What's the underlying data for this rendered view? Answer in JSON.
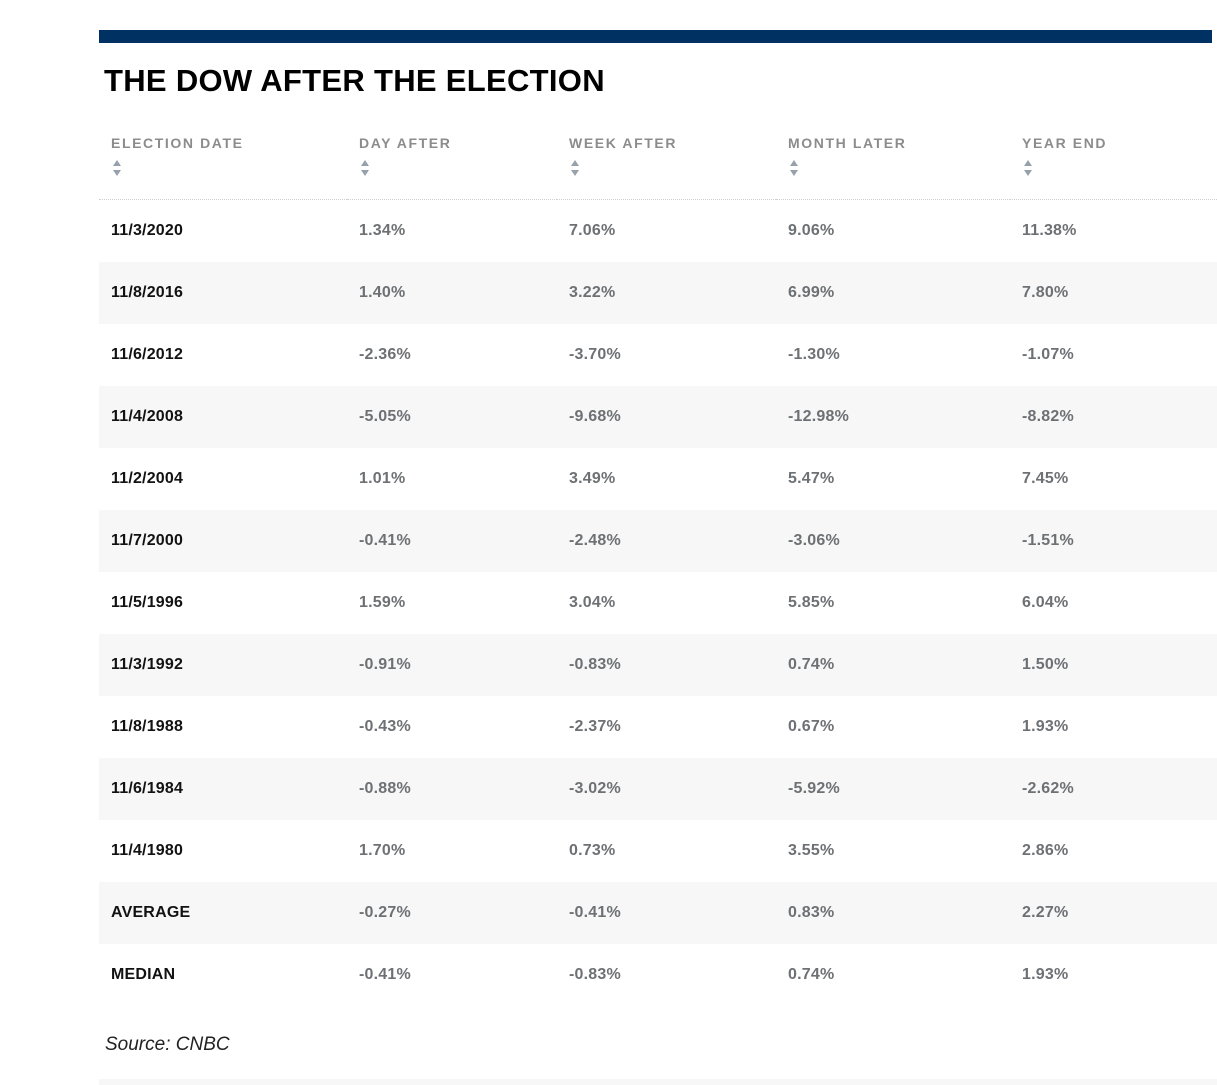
{
  "title": "THE DOW AFTER THE ELECTION",
  "source": "Source: CNBC",
  "colors": {
    "brand_bar": "#003163",
    "row_stripe": "#f7f7f7",
    "header_text": "#8c8c8c",
    "value_text": "#6e7174",
    "label_text": "#121212"
  },
  "table": {
    "columns": [
      {
        "id": "election-date",
        "label": "ELECTION DATE"
      },
      {
        "id": "day-after",
        "label": "DAY AFTER"
      },
      {
        "id": "week-after",
        "label": "WEEK AFTER"
      },
      {
        "id": "month-later",
        "label": "MONTH LATER"
      },
      {
        "id": "year-end",
        "label": "YEAR END"
      }
    ],
    "rows": [
      {
        "label": "11/3/2020",
        "values": [
          "1.34%",
          "7.06%",
          "9.06%",
          "11.38%"
        ]
      },
      {
        "label": "11/8/2016",
        "values": [
          "1.40%",
          "3.22%",
          "6.99%",
          "7.80%"
        ]
      },
      {
        "label": "11/6/2012",
        "values": [
          "-2.36%",
          "-3.70%",
          "-1.30%",
          "-1.07%"
        ]
      },
      {
        "label": "11/4/2008",
        "values": [
          "-5.05%",
          "-9.68%",
          "-12.98%",
          "-8.82%"
        ]
      },
      {
        "label": "11/2/2004",
        "values": [
          "1.01%",
          "3.49%",
          "5.47%",
          "7.45%"
        ]
      },
      {
        "label": "11/7/2000",
        "values": [
          "-0.41%",
          "-2.48%",
          "-3.06%",
          "-1.51%"
        ]
      },
      {
        "label": "11/5/1996",
        "values": [
          "1.59%",
          "3.04%",
          "5.85%",
          "6.04%"
        ]
      },
      {
        "label": "11/3/1992",
        "values": [
          "-0.91%",
          "-0.83%",
          "0.74%",
          "1.50%"
        ]
      },
      {
        "label": "11/8/1988",
        "values": [
          "-0.43%",
          "-2.37%",
          "0.67%",
          "1.93%"
        ]
      },
      {
        "label": "11/6/1984",
        "values": [
          "-0.88%",
          "-3.02%",
          "-5.92%",
          "-2.62%"
        ]
      },
      {
        "label": "11/4/1980",
        "values": [
          "1.70%",
          "0.73%",
          "3.55%",
          "2.86%"
        ]
      },
      {
        "label": "AVERAGE",
        "values": [
          "-0.27%",
          "-0.41%",
          "0.83%",
          "2.27%"
        ]
      },
      {
        "label": "MEDIAN",
        "values": [
          "-0.41%",
          "-0.83%",
          "0.74%",
          "1.93%"
        ]
      }
    ]
  },
  "chart_data": {
    "type": "table",
    "title": "THE DOW AFTER THE ELECTION",
    "columns": [
      "ELECTION DATE",
      "DAY AFTER",
      "WEEK AFTER",
      "MONTH LATER",
      "YEAR END"
    ],
    "categories": [
      "11/3/2020",
      "11/8/2016",
      "11/6/2012",
      "11/4/2008",
      "11/2/2004",
      "11/7/2000",
      "11/5/1996",
      "11/3/1992",
      "11/8/1988",
      "11/6/1984",
      "11/4/1980"
    ],
    "series": [
      {
        "name": "DAY AFTER",
        "values": [
          1.34,
          1.4,
          -2.36,
          -5.05,
          1.01,
          -0.41,
          1.59,
          -0.91,
          -0.43,
          -0.88,
          1.7
        ]
      },
      {
        "name": "WEEK AFTER",
        "values": [
          7.06,
          3.22,
          -3.7,
          -9.68,
          3.49,
          -2.48,
          3.04,
          -0.83,
          -2.37,
          -3.02,
          0.73
        ]
      },
      {
        "name": "MONTH LATER",
        "values": [
          9.06,
          6.99,
          -1.3,
          -12.98,
          5.47,
          -3.06,
          5.85,
          0.74,
          0.67,
          -5.92,
          3.55
        ]
      },
      {
        "name": "YEAR END",
        "values": [
          11.38,
          7.8,
          -1.07,
          -8.82,
          7.45,
          -1.51,
          6.04,
          1.5,
          1.93,
          -2.62,
          2.86
        ]
      }
    ],
    "summary": {
      "AVERAGE": {
        "DAY AFTER": -0.27,
        "WEEK AFTER": -0.41,
        "MONTH LATER": 0.83,
        "YEAR END": 2.27
      },
      "MEDIAN": {
        "DAY AFTER": -0.41,
        "WEEK AFTER": -0.83,
        "MONTH LATER": 0.74,
        "YEAR END": 1.93
      }
    },
    "unit": "%",
    "source": "CNBC",
    "sortable_columns": true
  }
}
